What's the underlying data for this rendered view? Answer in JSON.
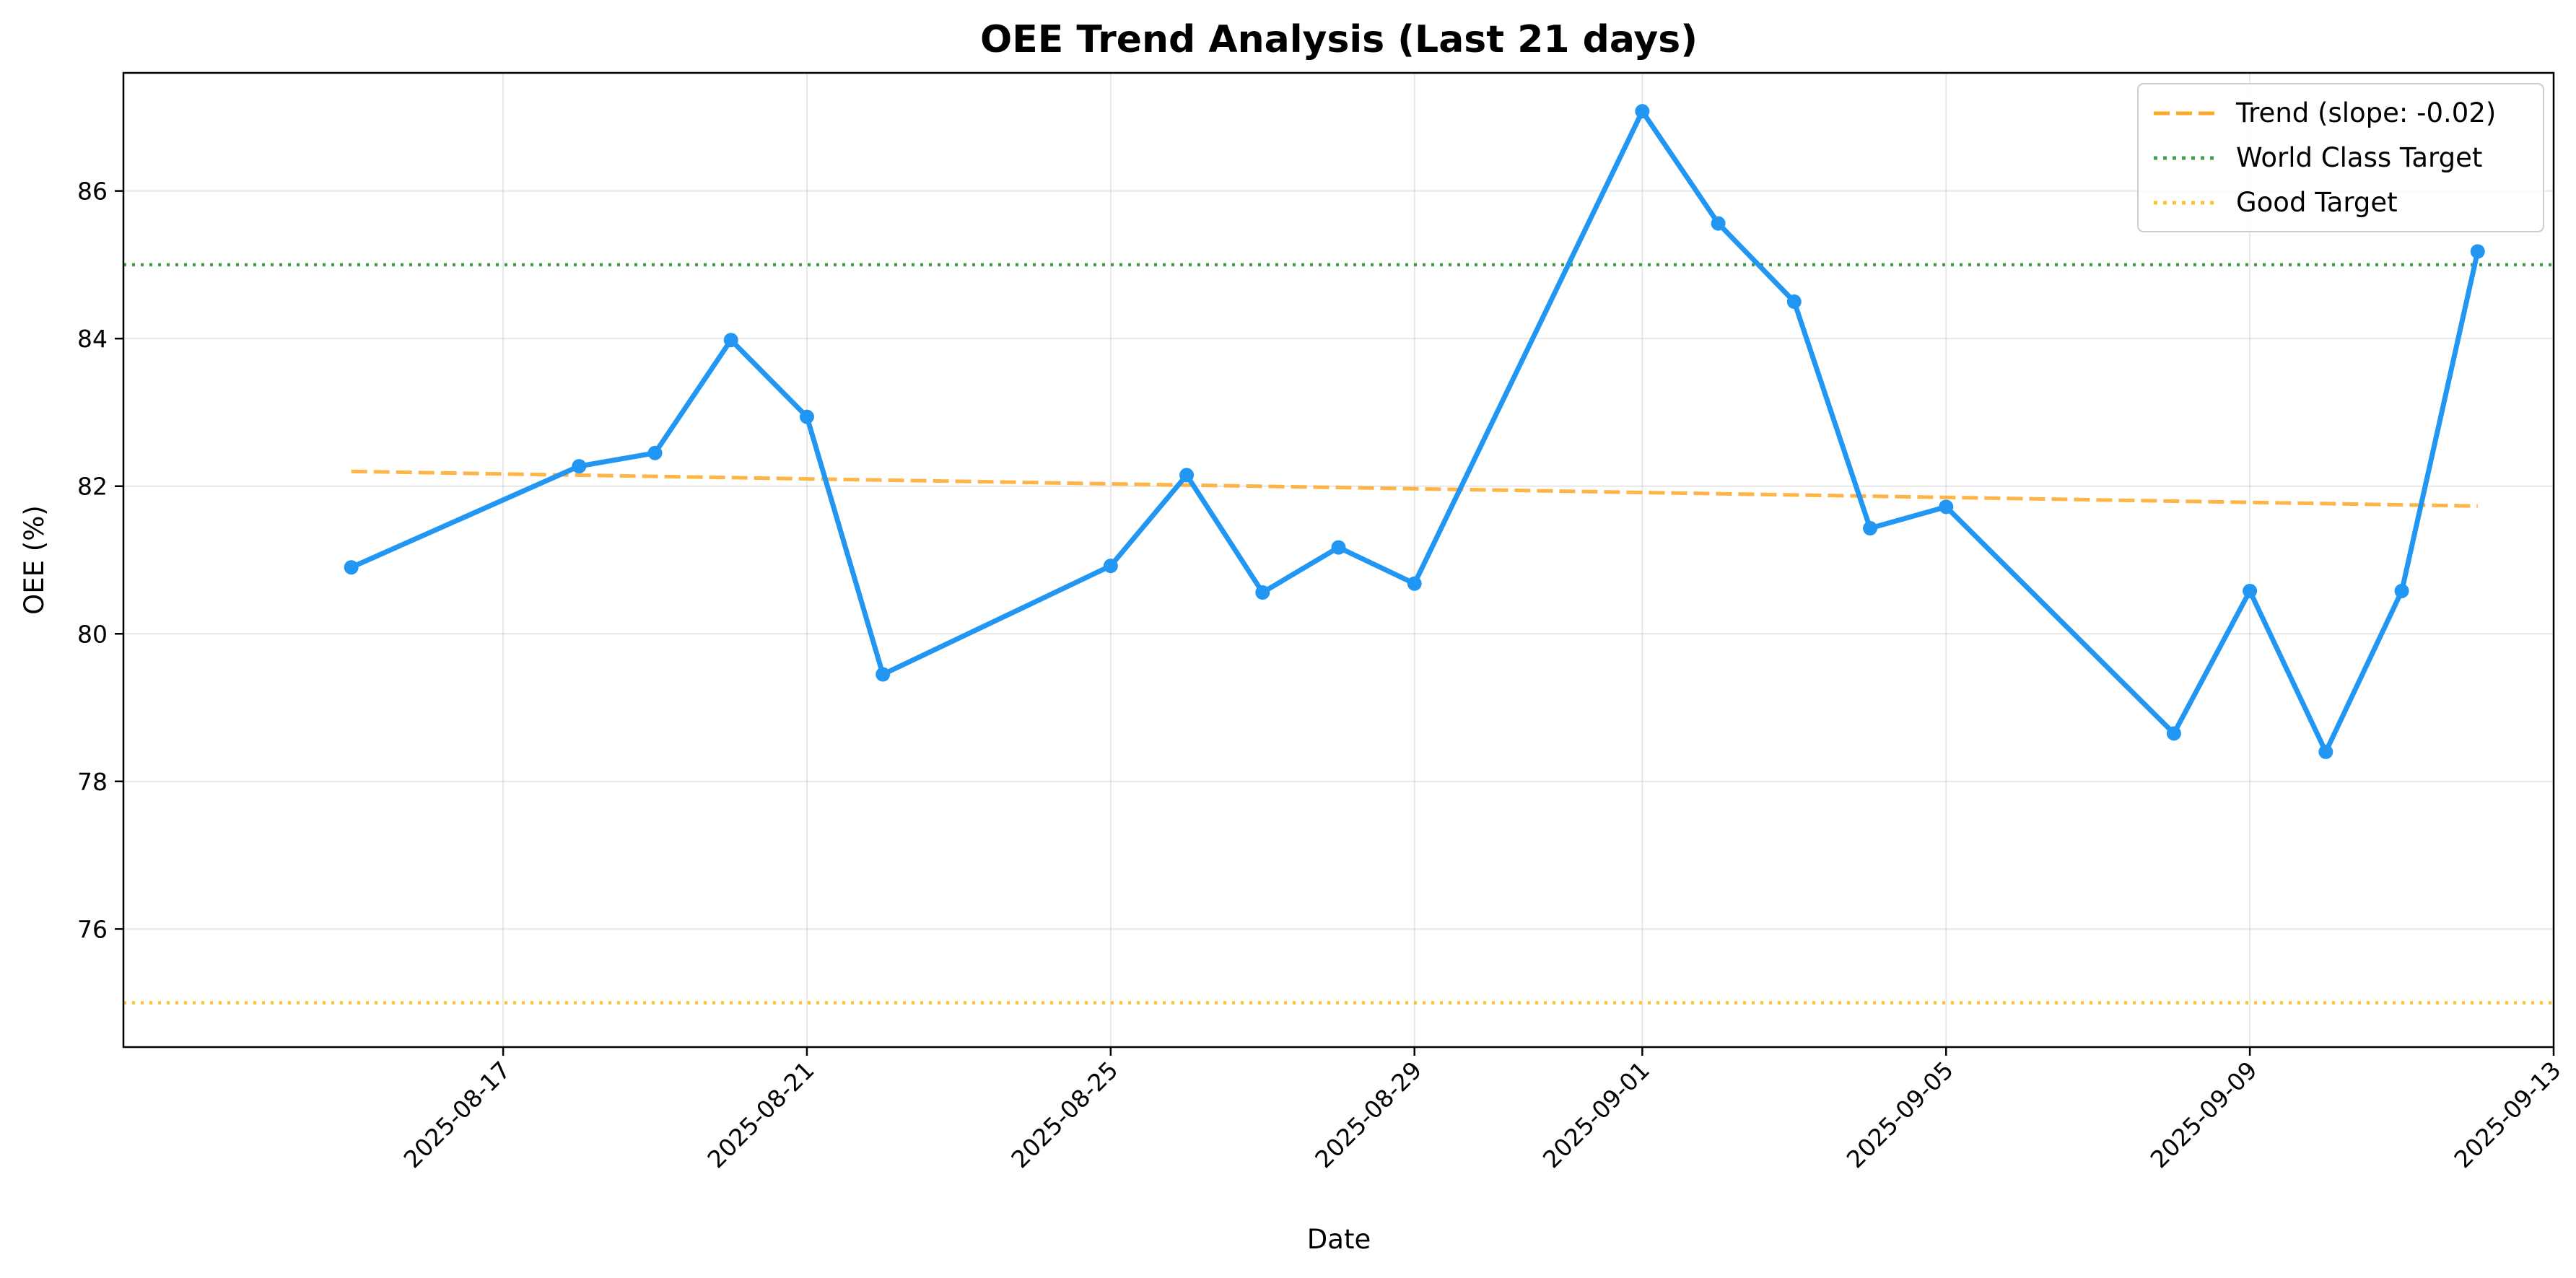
{
  "chart_data": {
    "type": "line",
    "title": "OEE Trend Analysis (Last 21 days)",
    "xlabel": "Date",
    "ylabel": "OEE (%)",
    "xlim": [
      "2025-08-12",
      "2025-09-13"
    ],
    "ylim": [
      74.4,
      87.6
    ],
    "x_ticks": [
      "2025-08-17",
      "2025-08-21",
      "2025-08-25",
      "2025-08-29",
      "2025-09-01",
      "2025-09-05",
      "2025-09-09",
      "2025-09-13"
    ],
    "y_ticks": [
      76,
      78,
      80,
      82,
      84,
      86
    ],
    "grid": true,
    "legend_position": "top-right",
    "series": [
      {
        "kind": "data",
        "color": "#2196f3",
        "x": [
          "2025-08-15",
          "2025-08-18",
          "2025-08-19",
          "2025-08-20",
          "2025-08-21",
          "2025-08-22",
          "2025-08-25",
          "2025-08-26",
          "2025-08-27",
          "2025-08-28",
          "2025-08-29",
          "2025-09-01",
          "2025-09-02",
          "2025-09-03",
          "2025-09-04",
          "2025-09-05",
          "2025-09-08",
          "2025-09-09",
          "2025-09-10",
          "2025-09-11",
          "2025-09-12"
        ],
        "y": [
          80.9,
          82.27,
          82.45,
          83.98,
          82.94,
          79.45,
          80.92,
          82.15,
          80.56,
          81.17,
          80.68,
          87.08,
          85.56,
          84.5,
          81.43,
          81.72,
          78.65,
          80.58,
          78.4,
          80.58,
          85.18
        ]
      },
      {
        "kind": "trend",
        "name": "Trend (slope: -0.02)",
        "color": "#ffa726",
        "style": "dashed",
        "x": [
          "2025-08-15",
          "2025-09-12"
        ],
        "y": [
          82.2,
          81.73
        ]
      }
    ],
    "reference_lines": [
      {
        "name": "World Class Target",
        "value": 85,
        "color": "#43a047",
        "style": "dotted"
      },
      {
        "name": "Good Target",
        "value": 75,
        "color": "#fbc02d",
        "style": "dotted"
      }
    ]
  }
}
